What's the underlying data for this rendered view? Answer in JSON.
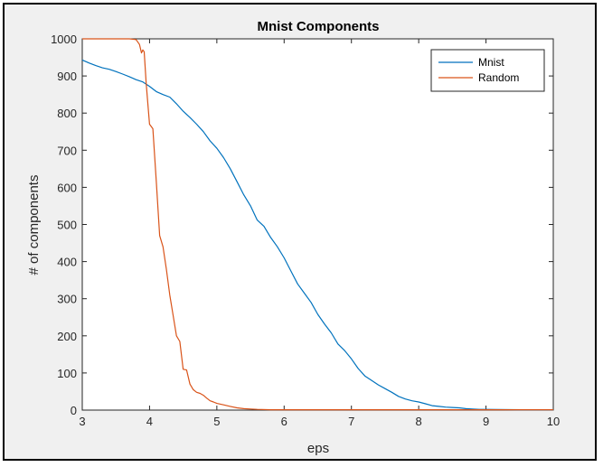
{
  "chart_data": {
    "type": "line",
    "title": "Mnist Components",
    "xlabel": "eps",
    "ylabel": "# of components",
    "xlim": [
      3,
      10
    ],
    "ylim": [
      0,
      1000
    ],
    "xticks": [
      "3",
      "4",
      "5",
      "6",
      "7",
      "8",
      "9",
      "10"
    ],
    "yticks": [
      "0",
      "100",
      "200",
      "300",
      "400",
      "500",
      "600",
      "700",
      "800",
      "900",
      "1000"
    ],
    "grid": false,
    "legend_position": "top-right",
    "series": [
      {
        "name": "Mnist",
        "color": "#0072BD",
        "x": [
          3.0,
          3.1,
          3.2,
          3.3,
          3.4,
          3.5,
          3.6,
          3.7,
          3.8,
          3.9,
          4.0,
          4.1,
          4.2,
          4.3,
          4.4,
          4.5,
          4.6,
          4.7,
          4.8,
          4.9,
          5.0,
          5.1,
          5.2,
          5.3,
          5.4,
          5.5,
          5.6,
          5.7,
          5.8,
          5.9,
          6.0,
          6.1,
          6.2,
          6.3,
          6.4,
          6.5,
          6.6,
          6.7,
          6.8,
          6.9,
          7.0,
          7.1,
          7.2,
          7.3,
          7.4,
          7.5,
          7.6,
          7.7,
          7.8,
          7.9,
          8.0,
          8.1,
          8.2,
          8.3,
          8.4,
          8.5,
          8.6,
          8.7,
          8.8,
          8.9,
          9.0,
          9.5,
          10.0
        ],
        "y": [
          943,
          935,
          928,
          922,
          918,
          912,
          905,
          898,
          890,
          884,
          872,
          858,
          850,
          843,
          825,
          805,
          788,
          770,
          750,
          725,
          705,
          680,
          650,
          615,
          580,
          550,
          512,
          495,
          465,
          440,
          410,
          375,
          340,
          315,
          290,
          258,
          232,
          208,
          178,
          160,
          138,
          112,
          92,
          80,
          68,
          58,
          48,
          37,
          30,
          25,
          22,
          17,
          12,
          10,
          8,
          7,
          6,
          4,
          3,
          2,
          2,
          1,
          1
        ]
      },
      {
        "name": "Random",
        "color": "#D95319",
        "x": [
          3.0,
          3.2,
          3.4,
          3.6,
          3.7,
          3.8,
          3.85,
          3.88,
          3.9,
          3.92,
          3.95,
          4.0,
          4.05,
          4.1,
          4.15,
          4.2,
          4.25,
          4.3,
          4.35,
          4.4,
          4.45,
          4.5,
          4.55,
          4.6,
          4.65,
          4.7,
          4.75,
          4.8,
          4.85,
          4.9,
          4.95,
          5.0,
          5.1,
          5.2,
          5.3,
          5.4,
          5.5,
          5.6,
          5.8,
          6.0,
          7.0,
          8.0,
          9.0,
          10.0
        ],
        "y": [
          1000,
          1000,
          1000,
          1000,
          1000,
          998,
          985,
          962,
          970,
          965,
          880,
          770,
          758,
          615,
          470,
          440,
          380,
          310,
          255,
          200,
          185,
          110,
          108,
          70,
          55,
          48,
          45,
          40,
          32,
          25,
          22,
          18,
          14,
          10,
          6,
          4,
          3,
          2,
          1,
          1,
          1,
          1,
          1,
          1
        ]
      }
    ]
  }
}
